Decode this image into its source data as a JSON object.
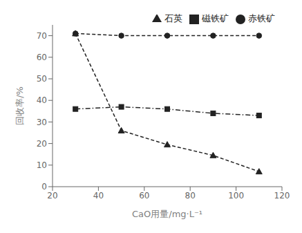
{
  "chart_data": {
    "type": "line",
    "x": [
      30,
      50,
      70,
      90,
      110
    ],
    "series": [
      {
        "name": "磁铁矿",
        "color": "#222222",
        "values": [
          36,
          37,
          36,
          34,
          33
        ],
        "marker": "square",
        "line_style": "dashdot"
      },
      {
        "name": "赤铁矿",
        "color": "#222222",
        "values": [
          71,
          70,
          70,
          70,
          70
        ],
        "marker": "circle",
        "line_style": "dashed"
      },
      {
        "name": "石英",
        "color": "#222222",
        "values": [
          71,
          26,
          19.5,
          14.5,
          7
        ],
        "marker": "triangle",
        "line_style": "dashed"
      }
    ],
    "xlabel": "CaO用量/mg·L⁻¹",
    "ylabel": "回收率/%",
    "xlim": [
      20,
      120
    ],
    "ylim": [
      0,
      75
    ],
    "xticks": [
      20,
      40,
      60,
      80,
      100,
      120
    ],
    "yticks": [
      0,
      10,
      20,
      30,
      40,
      50,
      60,
      70
    ],
    "grid": false,
    "legend": "upper right"
  }
}
